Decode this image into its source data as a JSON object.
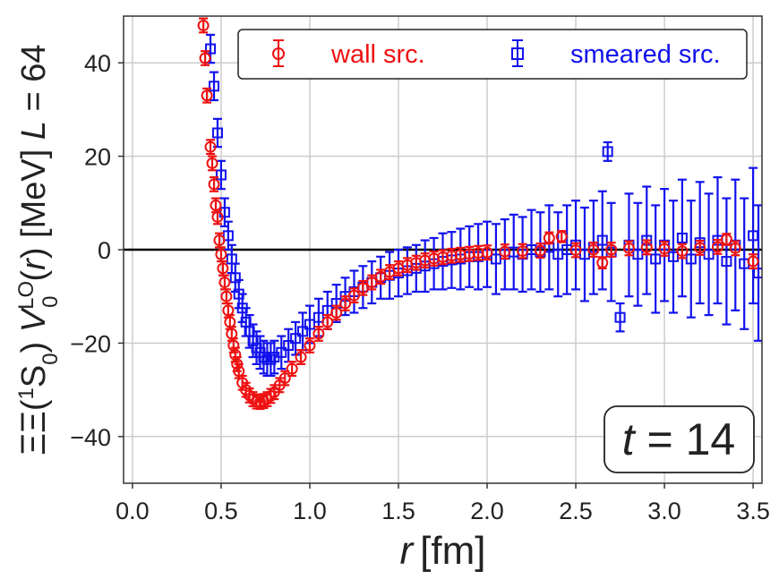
{
  "chart_data": {
    "type": "scatter",
    "title": "",
    "xlabel": "r [fm]",
    "xlabel_var": "r",
    "xlabel_unit": "[fm]",
    "ylabel": "ΞΞ(¹S₀) V₀ᴸᴼ(r) [MeV] L = 64",
    "ylabel_parts": {
      "prefix": "ΞΞ(",
      "sup1": "1",
      "s": "S",
      "sub0": "0",
      "close": ") ",
      "v": "V",
      "lo": "LO",
      "sub_v": "0",
      "r_open": "(",
      "r": "r",
      "r_close": ") [MeV] ",
      "l": "L",
      "eq": " = 64"
    },
    "xlim": [
      -0.05,
      3.55
    ],
    "ylim": [
      -50,
      50
    ],
    "x_ticks": [
      0.0,
      0.5,
      1.0,
      1.5,
      2.0,
      2.5,
      3.0,
      3.5
    ],
    "x_tick_labels": [
      "0.0",
      "0.5",
      "1.0",
      "1.5",
      "2.0",
      "2.5",
      "3.0",
      "3.5"
    ],
    "y_ticks": [
      40,
      20,
      0,
      -20,
      -40
    ],
    "y_tick_labels": [
      "40",
      "20",
      "0",
      "−20",
      "−40"
    ],
    "grid": true,
    "zero_line": 0,
    "legend": {
      "placement": "top",
      "entries": [
        "wall src.",
        "smeared src."
      ]
    },
    "annotation": {
      "text_var": "t",
      "text_value": " = 14",
      "placement": "bottom-right"
    },
    "series": [
      {
        "name": "wall src.",
        "color": "#ee1111",
        "marker": "circle",
        "points": [
          {
            "x": 0.4,
            "y": 48.0,
            "e": 1.5
          },
          {
            "x": 0.41,
            "y": 41.0,
            "e": 1.5
          },
          {
            "x": 0.42,
            "y": 33.0,
            "e": 1.5
          },
          {
            "x": 0.44,
            "y": 22.0,
            "e": 1.5
          },
          {
            "x": 0.45,
            "y": 18.5,
            "e": 1.5
          },
          {
            "x": 0.46,
            "y": 14.0,
            "e": 1.5
          },
          {
            "x": 0.47,
            "y": 9.5,
            "e": 1.5
          },
          {
            "x": 0.48,
            "y": 7.0,
            "e": 1.5
          },
          {
            "x": 0.49,
            "y": 2.0,
            "e": 1.5
          },
          {
            "x": 0.5,
            "y": -1.0,
            "e": 1.5
          },
          {
            "x": 0.51,
            "y": -4.0,
            "e": 1.5
          },
          {
            "x": 0.52,
            "y": -7.0,
            "e": 1.5
          },
          {
            "x": 0.53,
            "y": -10.0,
            "e": 1.5
          },
          {
            "x": 0.54,
            "y": -13.0,
            "e": 1.5
          },
          {
            "x": 0.55,
            "y": -15.5,
            "e": 1.5
          },
          {
            "x": 0.56,
            "y": -18.0,
            "e": 1.5
          },
          {
            "x": 0.57,
            "y": -20.5,
            "e": 1.5
          },
          {
            "x": 0.58,
            "y": -22.5,
            "e": 1.5
          },
          {
            "x": 0.59,
            "y": -24.5,
            "e": 1.5
          },
          {
            "x": 0.6,
            "y": -26.0,
            "e": 1.5
          },
          {
            "x": 0.62,
            "y": -28.5,
            "e": 1.5
          },
          {
            "x": 0.64,
            "y": -30.0,
            "e": 1.5
          },
          {
            "x": 0.66,
            "y": -31.2,
            "e": 1.5
          },
          {
            "x": 0.68,
            "y": -32.0,
            "e": 1.5
          },
          {
            "x": 0.7,
            "y": -32.5,
            "e": 1.5
          },
          {
            "x": 0.72,
            "y": -32.6,
            "e": 1.5
          },
          {
            "x": 0.74,
            "y": -32.4,
            "e": 1.5
          },
          {
            "x": 0.76,
            "y": -32.0,
            "e": 1.5
          },
          {
            "x": 0.78,
            "y": -31.3,
            "e": 1.5
          },
          {
            "x": 0.8,
            "y": -30.5,
            "e": 1.5
          },
          {
            "x": 0.83,
            "y": -29.0,
            "e": 1.5
          },
          {
            "x": 0.86,
            "y": -27.5,
            "e": 1.5
          },
          {
            "x": 0.9,
            "y": -25.5,
            "e": 1.5
          },
          {
            "x": 0.95,
            "y": -23.0,
            "e": 1.5
          },
          {
            "x": 1.0,
            "y": -20.5,
            "e": 1.5
          },
          {
            "x": 1.05,
            "y": -18.0,
            "e": 1.5
          },
          {
            "x": 1.1,
            "y": -15.5,
            "e": 1.5
          },
          {
            "x": 1.15,
            "y": -13.5,
            "e": 1.5
          },
          {
            "x": 1.2,
            "y": -11.5,
            "e": 1.5
          },
          {
            "x": 1.25,
            "y": -9.8,
            "e": 1.5
          },
          {
            "x": 1.3,
            "y": -8.2,
            "e": 1.5
          },
          {
            "x": 1.35,
            "y": -7.0,
            "e": 1.5
          },
          {
            "x": 1.4,
            "y": -5.8,
            "e": 1.5
          },
          {
            "x": 1.45,
            "y": -4.8,
            "e": 1.5
          },
          {
            "x": 1.5,
            "y": -4.0,
            "e": 1.5
          },
          {
            "x": 1.55,
            "y": -3.3,
            "e": 1.5
          },
          {
            "x": 1.6,
            "y": -2.8,
            "e": 1.5
          },
          {
            "x": 1.65,
            "y": -2.3,
            "e": 1.5
          },
          {
            "x": 1.7,
            "y": -1.9,
            "e": 1.5
          },
          {
            "x": 1.75,
            "y": -1.6,
            "e": 1.5
          },
          {
            "x": 1.8,
            "y": -1.3,
            "e": 1.5
          },
          {
            "x": 1.85,
            "y": -1.1,
            "e": 1.5
          },
          {
            "x": 1.9,
            "y": -0.9,
            "e": 1.5
          },
          {
            "x": 1.95,
            "y": -0.7,
            "e": 1.5
          },
          {
            "x": 2.0,
            "y": -0.6,
            "e": 1.5
          },
          {
            "x": 2.1,
            "y": -0.4,
            "e": 1.5
          },
          {
            "x": 2.2,
            "y": -0.3,
            "e": 1.5
          },
          {
            "x": 2.3,
            "y": -0.2,
            "e": 1.5
          },
          {
            "x": 2.35,
            "y": 2.5,
            "e": 1.2
          },
          {
            "x": 2.42,
            "y": 2.8,
            "e": 1.2
          },
          {
            "x": 2.5,
            "y": -0.1,
            "e": 1.5
          },
          {
            "x": 2.6,
            "y": 0.0,
            "e": 1.5
          },
          {
            "x": 2.65,
            "y": -2.8,
            "e": 1.2
          },
          {
            "x": 2.7,
            "y": 0.0,
            "e": 1.5
          },
          {
            "x": 2.8,
            "y": 0.3,
            "e": 1.5
          },
          {
            "x": 2.9,
            "y": 0.5,
            "e": 1.5
          },
          {
            "x": 3.0,
            "y": 0.2,
            "e": 1.5
          },
          {
            "x": 3.1,
            "y": -0.3,
            "e": 1.5
          },
          {
            "x": 3.2,
            "y": 0.4,
            "e": 1.5
          },
          {
            "x": 3.3,
            "y": 0.6,
            "e": 1.5
          },
          {
            "x": 3.35,
            "y": 2.2,
            "e": 1.2
          },
          {
            "x": 3.4,
            "y": 0.3,
            "e": 1.5
          },
          {
            "x": 3.5,
            "y": -2.5,
            "e": 1.5
          }
        ]
      },
      {
        "name": "smeared src.",
        "color": "#1111ee",
        "marker": "square",
        "points": [
          {
            "x": 0.44,
            "y": 43.0,
            "e": 3.0
          },
          {
            "x": 0.46,
            "y": 35.0,
            "e": 3.0
          },
          {
            "x": 0.48,
            "y": 25.0,
            "e": 3.0
          },
          {
            "x": 0.5,
            "y": 16.0,
            "e": 3.0
          },
          {
            "x": 0.52,
            "y": 8.0,
            "e": 3.0
          },
          {
            "x": 0.54,
            "y": 3.0,
            "e": 3.0
          },
          {
            "x": 0.56,
            "y": -2.0,
            "e": 3.0
          },
          {
            "x": 0.58,
            "y": -6.0,
            "e": 3.0
          },
          {
            "x": 0.6,
            "y": -9.5,
            "e": 3.0
          },
          {
            "x": 0.62,
            "y": -12.5,
            "e": 3.0
          },
          {
            "x": 0.64,
            "y": -15.5,
            "e": 3.0
          },
          {
            "x": 0.66,
            "y": -17.5,
            "e": 3.5
          },
          {
            "x": 0.68,
            "y": -19.5,
            "e": 3.5
          },
          {
            "x": 0.7,
            "y": -21.0,
            "e": 3.5
          },
          {
            "x": 0.72,
            "y": -22.0,
            "e": 3.5
          },
          {
            "x": 0.74,
            "y": -23.0,
            "e": 3.5
          },
          {
            "x": 0.76,
            "y": -23.5,
            "e": 3.5
          },
          {
            "x": 0.78,
            "y": -23.5,
            "e": 3.5
          },
          {
            "x": 0.8,
            "y": -23.0,
            "e": 3.5
          },
          {
            "x": 0.84,
            "y": -22.0,
            "e": 3.5
          },
          {
            "x": 0.88,
            "y": -20.5,
            "e": 3.5
          },
          {
            "x": 0.92,
            "y": -19.0,
            "e": 3.5
          },
          {
            "x": 0.96,
            "y": -17.5,
            "e": 4.0
          },
          {
            "x": 1.0,
            "y": -16.0,
            "e": 4.0
          },
          {
            "x": 1.05,
            "y": -14.5,
            "e": 4.0
          },
          {
            "x": 1.1,
            "y": -13.0,
            "e": 4.0
          },
          {
            "x": 1.15,
            "y": -11.5,
            "e": 4.0
          },
          {
            "x": 1.2,
            "y": -10.0,
            "e": 4.0
          },
          {
            "x": 1.25,
            "y": -9.0,
            "e": 4.5
          },
          {
            "x": 1.3,
            "y": -8.0,
            "e": 4.5
          },
          {
            "x": 1.35,
            "y": -7.0,
            "e": 4.5
          },
          {
            "x": 1.4,
            "y": -6.0,
            "e": 4.5
          },
          {
            "x": 1.45,
            "y": -5.5,
            "e": 5.0
          },
          {
            "x": 1.5,
            "y": -5.0,
            "e": 5.0
          },
          {
            "x": 1.55,
            "y": -4.5,
            "e": 5.0
          },
          {
            "x": 1.6,
            "y": -4.0,
            "e": 5.0
          },
          {
            "x": 1.65,
            "y": -3.5,
            "e": 5.5
          },
          {
            "x": 1.7,
            "y": -3.0,
            "e": 5.5
          },
          {
            "x": 1.75,
            "y": -2.5,
            "e": 6.0
          },
          {
            "x": 1.8,
            "y": -2.2,
            "e": 6.0
          },
          {
            "x": 1.85,
            "y": -2.0,
            "e": 6.5
          },
          {
            "x": 1.9,
            "y": -1.5,
            "e": 6.5
          },
          {
            "x": 1.95,
            "y": -1.5,
            "e": 7.0
          },
          {
            "x": 2.0,
            "y": -1.0,
            "e": 7.0
          },
          {
            "x": 2.05,
            "y": -2.0,
            "e": 7.5
          },
          {
            "x": 2.1,
            "y": -1.0,
            "e": 7.5
          },
          {
            "x": 2.15,
            "y": -0.5,
            "e": 8.0
          },
          {
            "x": 2.2,
            "y": -1.0,
            "e": 8.0
          },
          {
            "x": 2.25,
            "y": 0.0,
            "e": 8.5
          },
          {
            "x": 2.3,
            "y": -0.5,
            "e": 8.5
          },
          {
            "x": 2.35,
            "y": 0.5,
            "e": 9.0
          },
          {
            "x": 2.4,
            "y": -1.0,
            "e": 9.0
          },
          {
            "x": 2.45,
            "y": 0.0,
            "e": 9.5
          },
          {
            "x": 2.5,
            "y": 1.0,
            "e": 9.5
          },
          {
            "x": 2.55,
            "y": -1.0,
            "e": 10.0
          },
          {
            "x": 2.6,
            "y": 0.5,
            "e": 10.0
          },
          {
            "x": 2.65,
            "y": 2.0,
            "e": 10.5
          },
          {
            "x": 2.68,
            "y": 21.0,
            "e": 2.0
          },
          {
            "x": 2.7,
            "y": -0.5,
            "e": 10.5
          },
          {
            "x": 2.75,
            "y": -14.5,
            "e": 3.0
          },
          {
            "x": 2.8,
            "y": 1.0,
            "e": 11.0
          },
          {
            "x": 2.85,
            "y": -1.0,
            "e": 11.0
          },
          {
            "x": 2.9,
            "y": 2.0,
            "e": 11.5
          },
          {
            "x": 2.95,
            "y": -2.0,
            "e": 11.5
          },
          {
            "x": 3.0,
            "y": 1.0,
            "e": 12.0
          },
          {
            "x": 3.05,
            "y": -1.5,
            "e": 12.0
          },
          {
            "x": 3.1,
            "y": 2.5,
            "e": 12.5
          },
          {
            "x": 3.15,
            "y": -2.0,
            "e": 12.5
          },
          {
            "x": 3.2,
            "y": 1.5,
            "e": 13.0
          },
          {
            "x": 3.25,
            "y": -1.0,
            "e": 13.0
          },
          {
            "x": 3.3,
            "y": 2.0,
            "e": 13.5
          },
          {
            "x": 3.35,
            "y": -2.5,
            "e": 13.5
          },
          {
            "x": 3.4,
            "y": 1.0,
            "e": 14.0
          },
          {
            "x": 3.45,
            "y": -3.0,
            "e": 14.0
          },
          {
            "x": 3.5,
            "y": 3.0,
            "e": 14.5
          },
          {
            "x": 3.53,
            "y": -5.0,
            "e": 14.5
          }
        ]
      }
    ]
  }
}
